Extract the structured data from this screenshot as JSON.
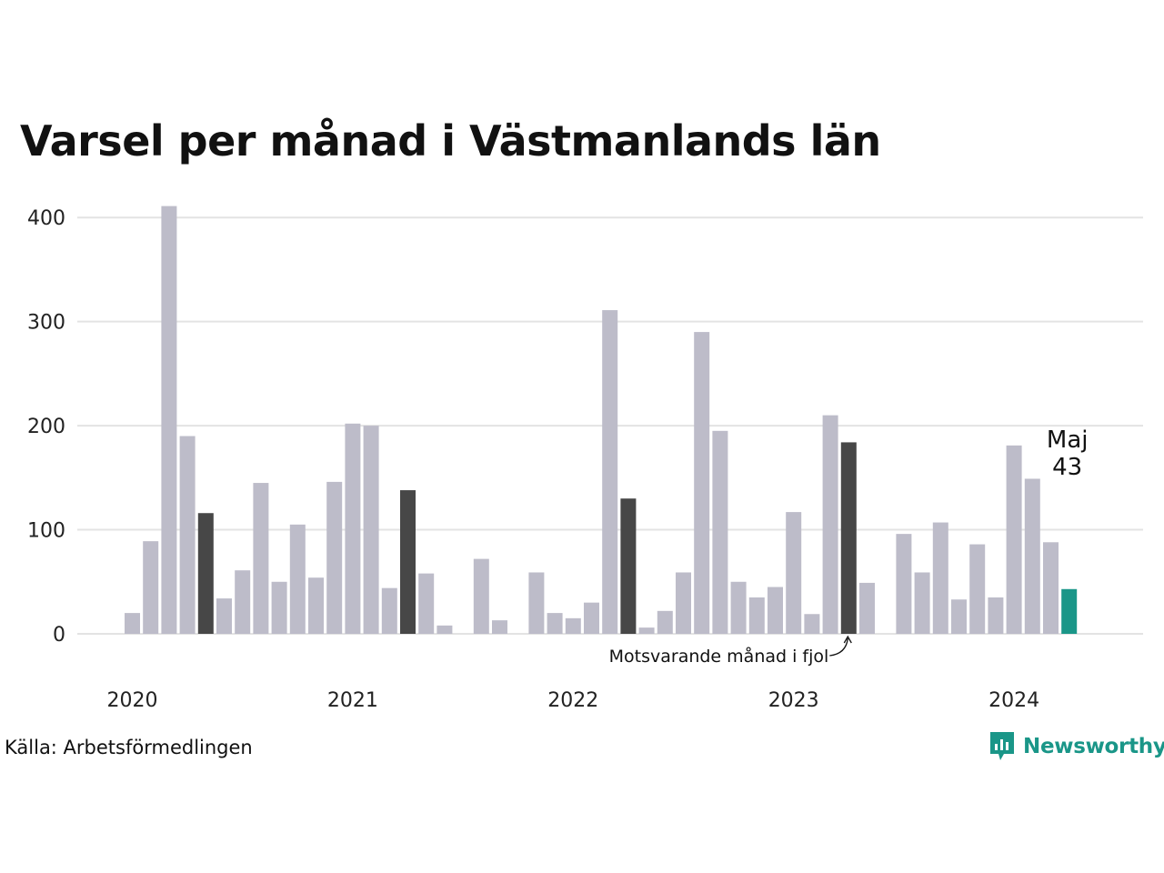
{
  "title": "Varsel per månad i Västmanlands län",
  "source": "Källa: Arbetsförmedlingen",
  "brand": "Newsworthy",
  "colors": {
    "bar": "#bdbcc9",
    "same_month": "#474747",
    "current": "#1a9688",
    "grid": "#e3e3e3",
    "brand": "#1a9688"
  },
  "chart_data": {
    "type": "bar",
    "ylim": [
      0,
      420
    ],
    "yticks": [
      "0",
      "100",
      "200",
      "300",
      "400"
    ],
    "grid": true,
    "year_labels": [
      "2020",
      "2021",
      "2022",
      "2023",
      "2024"
    ],
    "series": [
      {
        "values": [
          20,
          89,
          411,
          190,
          116,
          34,
          61,
          145,
          50,
          105,
          54,
          146,
          202,
          200,
          44,
          138,
          58,
          8,
          0,
          72,
          13,
          0,
          59,
          20,
          15,
          30,
          311,
          130,
          6,
          22,
          59,
          290,
          195,
          50,
          35,
          45,
          117,
          19,
          210,
          184,
          49,
          0,
          96,
          59,
          107,
          33,
          86,
          35,
          181,
          149,
          88,
          43
        ],
        "highlight_same_month": [
          4,
          15,
          27,
          39
        ],
        "highlight_current": 51
      }
    ],
    "annotations": {
      "current_month": "Maj",
      "current_value": "43",
      "previous_year": "Motsvarande månad i fjol"
    }
  }
}
